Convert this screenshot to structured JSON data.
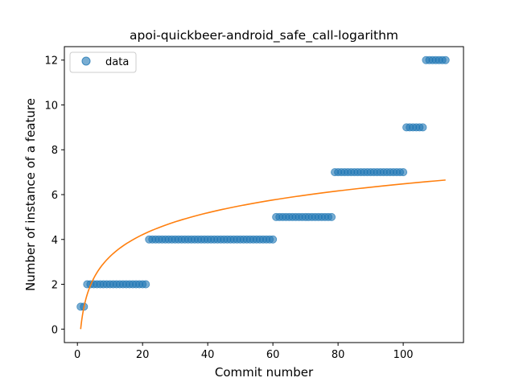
{
  "chart_data": {
    "type": "scatter",
    "title": "apoi-quickbeer-android_safe_call-logarithm",
    "xlabel": "Commit number",
    "ylabel": "Number of instance of a feature",
    "xlim": [
      -4,
      118.5
    ],
    "ylim": [
      -0.6,
      12.6
    ],
    "xticks": [
      0,
      20,
      40,
      60,
      80,
      100
    ],
    "yticks": [
      0,
      2,
      4,
      6,
      8,
      10,
      12
    ],
    "grid": false,
    "legend_position": "top-left",
    "legend": [
      "data"
    ],
    "series": [
      {
        "name": "data",
        "kind": "points",
        "color": "#1f77b4",
        "runs": [
          {
            "x_start": 1,
            "x_end": 2,
            "y": 1
          },
          {
            "x_start": 3,
            "x_end": 21,
            "y": 2
          },
          {
            "x_start": 22,
            "x_end": 60,
            "y": 4
          },
          {
            "x_start": 61,
            "x_end": 78,
            "y": 5
          },
          {
            "x_start": 79,
            "x_end": 100,
            "y": 7
          },
          {
            "x_start": 101,
            "x_end": 106,
            "y": 9
          },
          {
            "x_start": 107,
            "x_end": 113,
            "y": 12
          }
        ]
      },
      {
        "kind": "fit-curve",
        "color": "#ff7f0e",
        "model": "logarithmic",
        "x_range": [
          1,
          113
        ],
        "y_start": 0.0,
        "y_end": 6.65
      }
    ]
  }
}
